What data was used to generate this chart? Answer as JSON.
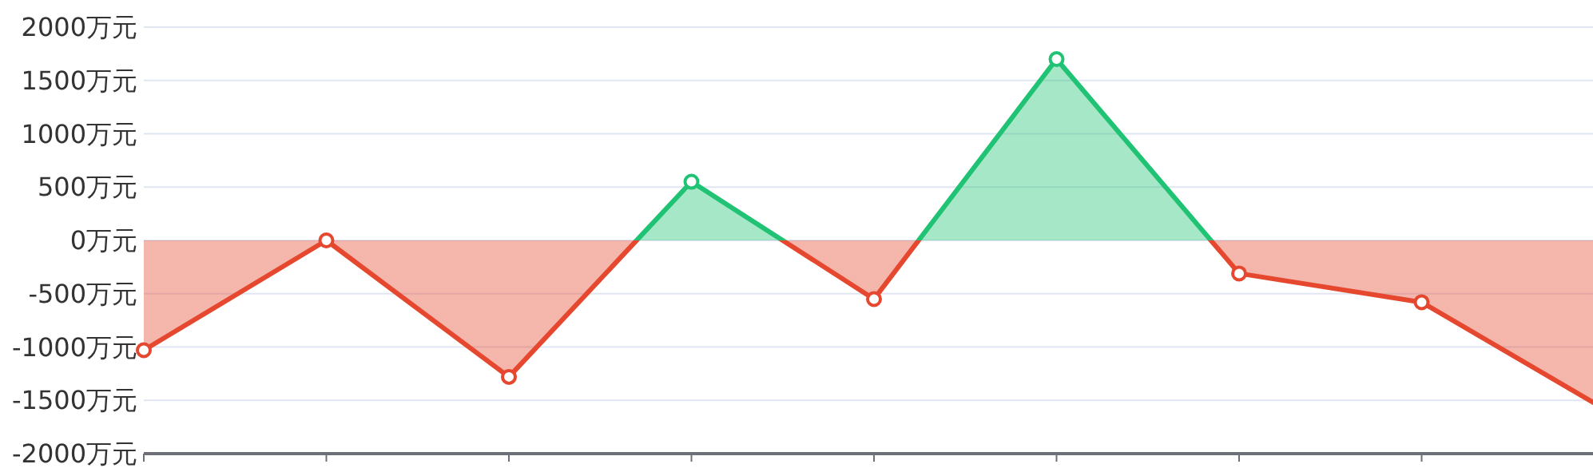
{
  "chart_data": {
    "type": "area",
    "categories": [
      null,
      null,
      null,
      null,
      null,
      null,
      null,
      null,
      null
    ],
    "series": [
      {
        "values": [
          -1030,
          0,
          -1280,
          550,
          -550,
          1700,
          -310,
          -580,
          -1580
        ],
        "colors": [
          "#e5482f",
          "#e5482f",
          "#e5482f",
          "#20c374",
          "#e5482f",
          "#20c374",
          "#e5482f",
          "#e5482f",
          "#e5482f"
        ]
      }
    ],
    "ylim": [
      -2000,
      2000
    ],
    "yticks": [
      {
        "value": -2000,
        "label": "-2000万元"
      },
      {
        "value": -1500,
        "label": "-1500万元"
      },
      {
        "value": -1000,
        "label": "-1000万元"
      },
      {
        "value": -500,
        "label": "-500万元"
      },
      {
        "value": 0,
        "label": "0万元"
      },
      {
        "value": 500,
        "label": "500万元"
      },
      {
        "value": 1000,
        "label": "1000万元"
      },
      {
        "value": 1500,
        "label": "1500万元"
      },
      {
        "value": 2000,
        "label": "2000万元"
      }
    ],
    "grid": "y",
    "marker": "circle"
  }
}
